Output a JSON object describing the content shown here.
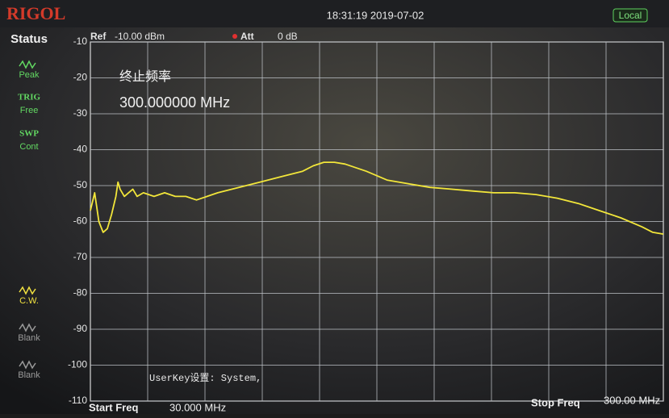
{
  "screen": {
    "brand": "RIGOL",
    "datetime": "18:31:19 2019-07-02",
    "local": "Local",
    "status": "Status",
    "side_items": [
      {
        "label": "Peak"
      },
      {
        "label_top": "TRIG",
        "label": "Free"
      },
      {
        "label_top": "SWP",
        "label": "Cont"
      },
      {
        "label": "C.W."
      },
      {
        "label": "Blank"
      },
      {
        "label": "Blank"
      }
    ],
    "ref_label": "Ref",
    "ref_value": "-10.00 dBm",
    "att_label": "Att",
    "att_value": "0 dB",
    "marker_title": "终止频率",
    "marker_value": "300.000000 MHz",
    "userkey": "UserKey设置:  System,",
    "start_label": "Start Freq",
    "start_value": "30.000 MHz",
    "stop_label": "Stop Freq",
    "stop_value": "300.00 MHz"
  },
  "chart_data": {
    "type": "line",
    "color": "#f2e63a",
    "grid": true,
    "x": [
      30,
      32,
      34,
      36,
      38,
      40,
      42,
      43,
      44,
      46,
      48,
      50,
      52,
      55,
      60,
      65,
      70,
      75,
      80,
      85,
      90,
      100,
      110,
      120,
      130,
      135,
      140,
      145,
      150,
      160,
      170,
      180,
      190,
      200,
      210,
      220,
      230,
      240,
      250,
      260,
      270,
      280,
      290,
      295,
      300
    ],
    "values": [
      -57,
      -52,
      -60,
      -63,
      -62,
      -58,
      -53,
      -49,
      -51,
      -53,
      -52,
      -51,
      -53,
      -52,
      -53,
      -52,
      -53,
      -53,
      -54,
      -53,
      -52,
      -50.5,
      -49,
      -47.5,
      -46,
      -44.5,
      -43.5,
      -43.5,
      -44,
      -46,
      -48.5,
      -49.5,
      -50.5,
      -51,
      -51.5,
      -52,
      -52,
      -52.5,
      -53.5,
      -55,
      -57,
      -59,
      -61.5,
      -63,
      -63.5
    ],
    "xlim": [
      30,
      300
    ],
    "ylim": [
      -110,
      -10
    ],
    "yticks": [
      -10,
      -20,
      -30,
      -40,
      -50,
      -60,
      -70,
      -80,
      -90,
      -100,
      -110
    ]
  }
}
